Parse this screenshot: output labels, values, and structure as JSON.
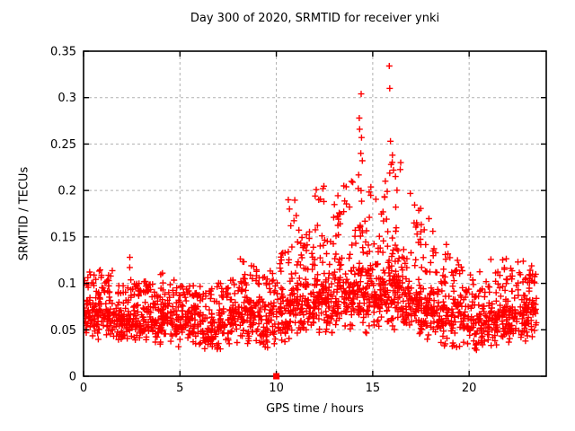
{
  "figure": {
    "title": "Day 300 of 2020, SRMTID for receiver ynki",
    "xlabel": "GPS time / hours",
    "ylabel": "SRMTID / TECUs"
  },
  "chart_data": {
    "type": "scatter",
    "title": "Day 300 of 2020, SRMTID for receiver ynki",
    "xlabel": "GPS time / hours",
    "ylabel": "SRMTID / TECUs",
    "xlim": [
      0,
      24
    ],
    "ylim": [
      0,
      0.35
    ],
    "xticks": [
      0,
      5,
      10,
      15,
      20
    ],
    "xtick_labels": [
      "0",
      "5",
      "10",
      "15",
      "20"
    ],
    "yticks": [
      0,
      0.05,
      0.1,
      0.15,
      0.2,
      0.25,
      0.3,
      0.35
    ],
    "ytick_labels": [
      "0",
      "0.05",
      "0.1",
      "0.15",
      "0.2",
      "0.25",
      "0.3",
      "0.35"
    ],
    "grid": true,
    "grid_style": "dashed",
    "grid_color": "#b0b0b0",
    "border_color": "#000000",
    "marker": "plus",
    "marker_color": "#ff0000",
    "seed": 42,
    "density_bins_note": "Dense noisy scatter approximated per 0.5-hour bin; each bin row = [count, y_min, y_core_max, y_max], bin i spans hours [i*0.5, i*0.5+0.5]",
    "bin_width_hours": 0.5,
    "density_bins": [
      [
        50,
        0.04,
        0.095,
        0.115
      ],
      [
        48,
        0.035,
        0.09,
        0.12
      ],
      [
        50,
        0.04,
        0.09,
        0.115
      ],
      [
        46,
        0.035,
        0.085,
        0.1
      ],
      [
        48,
        0.03,
        0.09,
        0.125
      ],
      [
        46,
        0.03,
        0.085,
        0.1
      ],
      [
        48,
        0.035,
        0.09,
        0.105
      ],
      [
        44,
        0.03,
        0.085,
        0.1
      ],
      [
        48,
        0.035,
        0.09,
        0.115
      ],
      [
        44,
        0.03,
        0.085,
        0.105
      ],
      [
        46,
        0.035,
        0.09,
        0.11
      ],
      [
        44,
        0.03,
        0.085,
        0.1
      ],
      [
        42,
        0.02,
        0.08,
        0.1
      ],
      [
        40,
        0.016,
        0.08,
        0.1
      ],
      [
        42,
        0.025,
        0.085,
        0.11
      ],
      [
        44,
        0.03,
        0.09,
        0.12
      ],
      [
        50,
        0.035,
        0.1,
        0.13
      ],
      [
        50,
        0.03,
        0.1,
        0.13
      ],
      [
        44,
        0.025,
        0.095,
        0.12
      ],
      [
        40,
        0.025,
        0.09,
        0.115
      ],
      [
        46,
        0.03,
        0.1,
        0.14
      ],
      [
        50,
        0.035,
        0.11,
        0.19
      ],
      [
        52,
        0.04,
        0.115,
        0.175
      ],
      [
        52,
        0.04,
        0.115,
        0.16
      ],
      [
        54,
        0.045,
        0.125,
        0.205
      ],
      [
        52,
        0.04,
        0.12,
        0.185
      ],
      [
        54,
        0.045,
        0.125,
        0.195
      ],
      [
        54,
        0.04,
        0.13,
        0.21
      ],
      [
        56,
        0.045,
        0.135,
        0.255
      ],
      [
        54,
        0.04,
        0.13,
        0.22
      ],
      [
        52,
        0.045,
        0.12,
        0.2
      ],
      [
        56,
        0.05,
        0.14,
        0.25
      ],
      [
        56,
        0.045,
        0.135,
        0.245
      ],
      [
        52,
        0.04,
        0.125,
        0.22
      ],
      [
        50,
        0.04,
        0.115,
        0.185
      ],
      [
        48,
        0.035,
        0.11,
        0.175
      ],
      [
        48,
        0.035,
        0.105,
        0.16
      ],
      [
        46,
        0.03,
        0.1,
        0.15
      ],
      [
        44,
        0.03,
        0.095,
        0.13
      ],
      [
        42,
        0.03,
        0.09,
        0.12
      ],
      [
        42,
        0.025,
        0.085,
        0.11
      ],
      [
        44,
        0.03,
        0.085,
        0.115
      ],
      [
        46,
        0.03,
        0.09,
        0.13
      ],
      [
        48,
        0.035,
        0.095,
        0.13
      ],
      [
        46,
        0.03,
        0.09,
        0.12
      ],
      [
        48,
        0.035,
        0.1,
        0.125
      ],
      [
        48,
        0.04,
        0.1,
        0.12
      ]
    ],
    "outliers": [
      [
        15.86,
        0.334
      ],
      [
        15.88,
        0.31
      ],
      [
        14.4,
        0.304
      ],
      [
        14.3,
        0.278
      ],
      [
        14.32,
        0.266
      ],
      [
        14.42,
        0.257
      ],
      [
        15.92,
        0.253
      ],
      [
        16.02,
        0.238
      ],
      [
        14.38,
        0.24
      ],
      [
        14.46,
        0.232
      ],
      [
        15.95,
        0.228
      ],
      [
        16.08,
        0.222
      ],
      [
        16.18,
        0.215
      ],
      [
        16.45,
        0.23
      ],
      [
        12.42,
        0.202
      ],
      [
        13.62,
        0.204
      ],
      [
        10.62,
        0.19
      ],
      [
        10.68,
        0.18
      ],
      [
        10.75,
        0.162
      ],
      [
        12.2,
        0.19
      ],
      [
        13.5,
        0.205
      ],
      [
        2.4,
        0.128
      ]
    ],
    "special_points": [
      {
        "x": 10,
        "y": 0,
        "marker": "filled-square",
        "color": "#ff0000"
      }
    ]
  }
}
